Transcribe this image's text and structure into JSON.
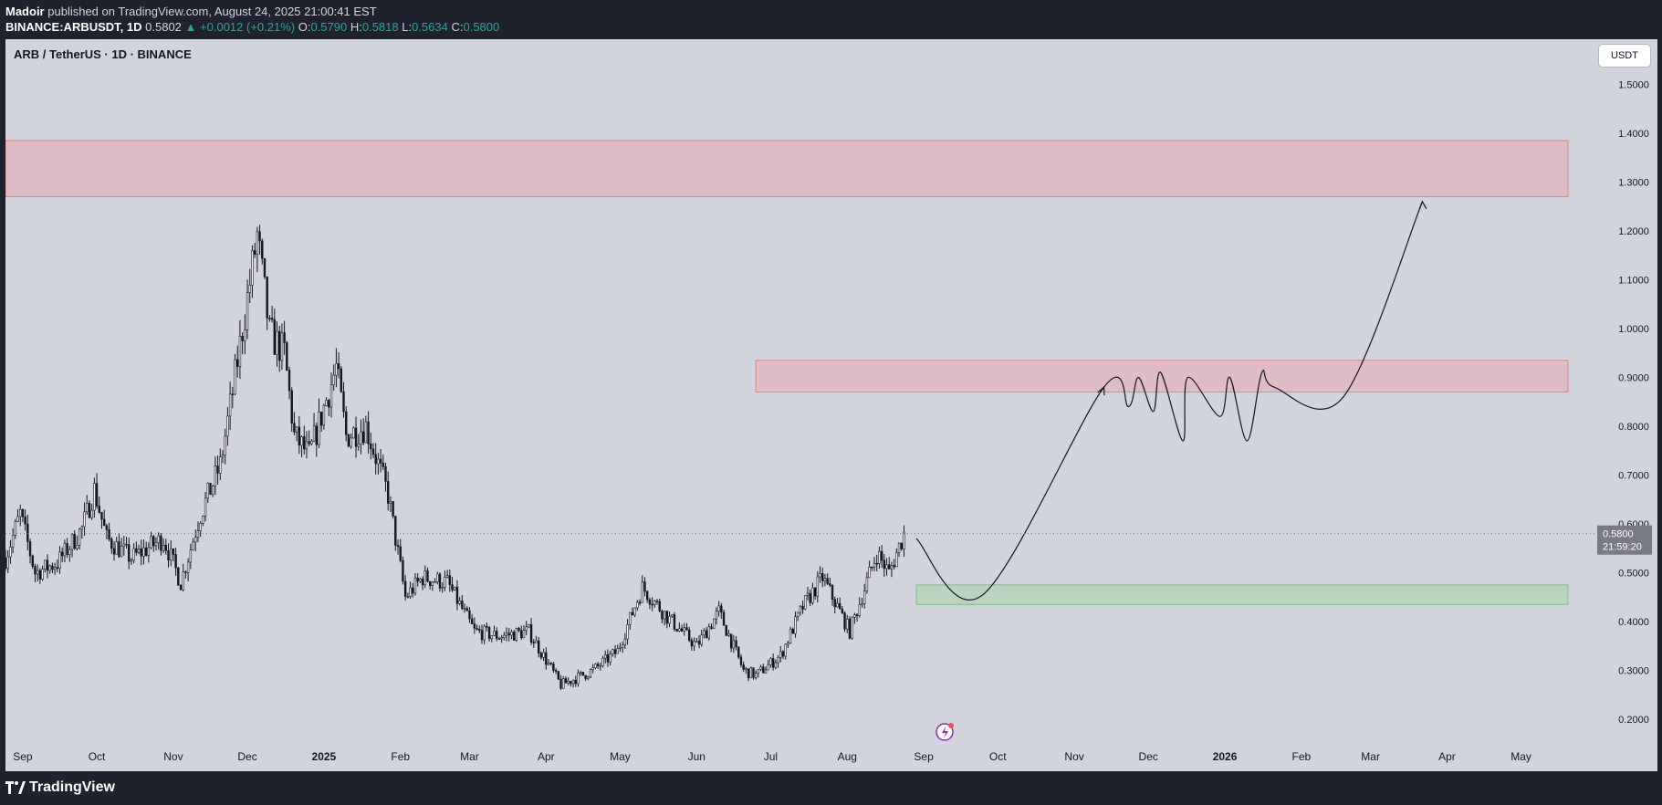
{
  "header": {
    "author": "Madoir",
    "published_text": "published on TradingView.com, August 24, 2025 21:00:41 EST",
    "symbol": "BINANCE:ARBUSDT, 1D",
    "last": "0.5802",
    "change": "+0.0012 (+0.21%)",
    "open_label": "O:",
    "open": "0.5790",
    "high_label": "H:",
    "high": "0.5818",
    "low_label": "L:",
    "low": "0.5634",
    "close_label": "C:",
    "close": "0.5800"
  },
  "chart_title": "ARB / TetherUS · 1D · BINANCE",
  "currency_badge": "USDT",
  "footer": {
    "brand": "TradingView"
  },
  "colors": {
    "up": "#26a69a",
    "down": "#ef5350",
    "candle": "#131722",
    "resistance_zone": "#f0a1aa",
    "support_zone": "#a5d6a7",
    "background": "#d1d4dc"
  },
  "chart_data": {
    "type": "candlestick",
    "title": "ARB / TetherUS · 1D · BINANCE",
    "y_scale": "linear",
    "ylim": [
      0.15,
      1.6
    ],
    "y_ticks": [
      "1.5000",
      "1.4000",
      "1.3000",
      "1.2000",
      "1.1000",
      "1.0000",
      "0.9000",
      "0.8000",
      "0.7000",
      "0.6000",
      "0.5000",
      "0.4000",
      "0.3000",
      "0.2000"
    ],
    "x_ticks": [
      "Sep",
      "Oct",
      "Nov",
      "Dec",
      "2025",
      "Feb",
      "Mar",
      "Apr",
      "May",
      "Jun",
      "Jul",
      "Aug",
      "Sep",
      "Oct",
      "Nov",
      "Dec",
      "2026",
      "Feb",
      "Mar",
      "Apr",
      "May"
    ],
    "last_price": {
      "value": "0.5800",
      "countdown": "21:59:20"
    },
    "price_series": [
      {
        "date": "2024-08-25",
        "close": 0.53
      },
      {
        "date": "2024-08-31",
        "close": 0.62
      },
      {
        "date": "2024-09-06",
        "close": 0.5
      },
      {
        "date": "2024-09-15",
        "close": 0.52
      },
      {
        "date": "2024-09-25",
        "close": 0.59
      },
      {
        "date": "2024-09-30",
        "close": 0.67
      },
      {
        "date": "2024-10-05",
        "close": 0.57
      },
      {
        "date": "2024-10-15",
        "close": 0.53
      },
      {
        "date": "2024-10-28",
        "close": 0.57
      },
      {
        "date": "2024-11-04",
        "close": 0.48
      },
      {
        "date": "2024-11-12",
        "close": 0.62
      },
      {
        "date": "2024-11-20",
        "close": 0.72
      },
      {
        "date": "2024-11-25",
        "close": 0.87
      },
      {
        "date": "2024-12-05",
        "close": 1.19
      },
      {
        "date": "2024-12-10",
        "close": 0.99
      },
      {
        "date": "2024-12-16",
        "close": 0.95
      },
      {
        "date": "2024-12-20",
        "close": 0.78
      },
      {
        "date": "2024-12-26",
        "close": 0.74
      },
      {
        "date": "2025-01-06",
        "close": 0.92
      },
      {
        "date": "2025-01-10",
        "close": 0.78
      },
      {
        "date": "2025-01-18",
        "close": 0.8
      },
      {
        "date": "2025-01-27",
        "close": 0.66
      },
      {
        "date": "2025-02-03",
        "close": 0.45
      },
      {
        "date": "2025-02-10",
        "close": 0.49
      },
      {
        "date": "2025-02-20",
        "close": 0.48
      },
      {
        "date": "2025-03-03",
        "close": 0.38
      },
      {
        "date": "2025-03-13",
        "close": 0.37
      },
      {
        "date": "2025-03-25",
        "close": 0.38
      },
      {
        "date": "2025-04-07",
        "close": 0.27
      },
      {
        "date": "2025-04-20",
        "close": 0.3
      },
      {
        "date": "2025-04-30",
        "close": 0.34
      },
      {
        "date": "2025-05-10",
        "close": 0.47
      },
      {
        "date": "2025-05-20",
        "close": 0.41
      },
      {
        "date": "2025-06-01",
        "close": 0.35
      },
      {
        "date": "2025-06-10",
        "close": 0.42
      },
      {
        "date": "2025-06-20",
        "close": 0.3
      },
      {
        "date": "2025-06-25",
        "close": 0.29
      },
      {
        "date": "2025-07-05",
        "close": 0.33
      },
      {
        "date": "2025-07-14",
        "close": 0.43
      },
      {
        "date": "2025-07-22",
        "close": 0.49
      },
      {
        "date": "2025-08-02",
        "close": 0.38
      },
      {
        "date": "2025-08-13",
        "close": 0.54
      },
      {
        "date": "2025-08-18",
        "close": 0.5
      },
      {
        "date": "2025-08-24",
        "close": 0.58
      }
    ],
    "zones": [
      {
        "name": "resistance-high",
        "from_date": "2024-08-25",
        "to_date": "2026-05-20",
        "low": 1.27,
        "high": 1.385
      },
      {
        "name": "resistance-mid",
        "from_date": "2025-06-25",
        "to_date": "2026-05-20",
        "low": 0.87,
        "high": 0.935
      },
      {
        "name": "support",
        "from_date": "2025-08-29",
        "to_date": "2026-05-20",
        "low": 0.435,
        "high": 0.475
      }
    ],
    "projection": [
      {
        "date": "2025-08-29",
        "price": 0.57
      },
      {
        "date": "2025-09-25",
        "price": 0.455
      },
      {
        "date": "2025-11-13",
        "price": 0.88
      },
      {
        "date": "2025-11-23",
        "price": 0.84
      },
      {
        "date": "2025-11-27",
        "price": 0.9
      },
      {
        "date": "2025-12-03",
        "price": 0.83
      },
      {
        "date": "2025-12-06",
        "price": 0.91
      },
      {
        "date": "2025-12-15",
        "price": 0.77
      },
      {
        "date": "2025-12-17",
        "price": 0.9
      },
      {
        "date": "2025-12-30",
        "price": 0.82
      },
      {
        "date": "2026-01-03",
        "price": 0.9
      },
      {
        "date": "2026-01-10",
        "price": 0.77
      },
      {
        "date": "2026-01-16",
        "price": 0.91
      },
      {
        "date": "2026-01-21",
        "price": 0.88
      },
      {
        "date": "2026-02-18",
        "price": 0.86
      },
      {
        "date": "2026-03-22",
        "price": 1.26
      }
    ]
  }
}
